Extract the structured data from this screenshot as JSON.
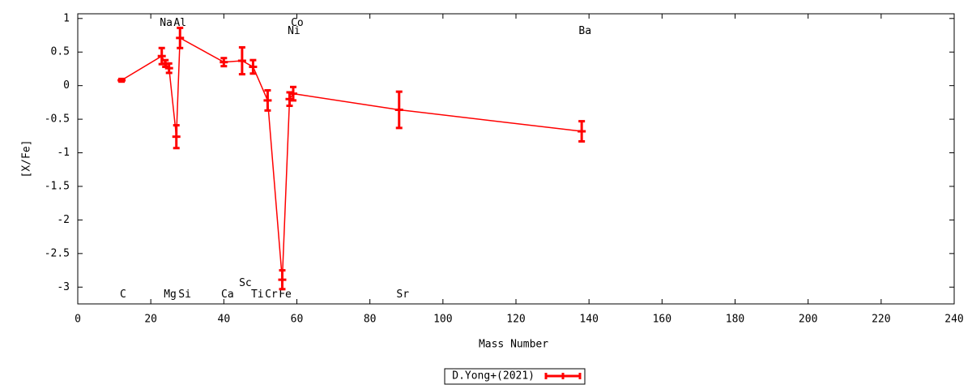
{
  "chart_data": {
    "type": "line",
    "xlabel": "Mass Number",
    "ylabel": "[X/Fe]",
    "xlim": [
      0,
      240
    ],
    "xticks": [
      0,
      20,
      40,
      60,
      80,
      100,
      120,
      140,
      160,
      180,
      200,
      220,
      240
    ],
    "ylim": [
      -3.25,
      1.07
    ],
    "yticks": [
      1,
      0.5,
      0,
      -0.5,
      -1,
      -1.5,
      -2,
      -2.5,
      -3
    ],
    "series": [
      {
        "name": "D.Yong+(2021)",
        "color": "#ff0000",
        "x": [
          12,
          23,
          24,
          25,
          27,
          28,
          40,
          45,
          48,
          52,
          56,
          58,
          59,
          88,
          138
        ],
        "values": [
          0.08,
          0.44,
          0.33,
          0.26,
          -0.76,
          0.71,
          0.35,
          0.37,
          0.28,
          -0.22,
          -2.89,
          -0.2,
          -0.12,
          -0.36,
          -0.68
        ],
        "errors": [
          0.02,
          0.12,
          0.05,
          0.07,
          0.17,
          0.15,
          0.06,
          0.2,
          0.1,
          0.15,
          0.14,
          0.1,
          0.1,
          0.27,
          0.15
        ]
      }
    ],
    "legend": "bottom-center",
    "annotations": [
      {
        "text": "C",
        "x": 12.4,
        "y": -3.11
      },
      {
        "text": "Na",
        "x": 24.2,
        "y": 0.93
      },
      {
        "text": "Al",
        "x": 28,
        "y": 0.93
      },
      {
        "text": "Mg",
        "x": 25.3,
        "y": -3.11
      },
      {
        "text": "Si",
        "x": 29.3,
        "y": -3.11
      },
      {
        "text": "Ca",
        "x": 41,
        "y": -3.11
      },
      {
        "text": "Sc",
        "x": 45.9,
        "y": -2.94
      },
      {
        "text": "Ti",
        "x": 49.2,
        "y": -3.11
      },
      {
        "text": "Cr",
        "x": 53,
        "y": -3.11
      },
      {
        "text": "Fe",
        "x": 56.8,
        "y": -3.11
      },
      {
        "text": "Co",
        "x": 60.1,
        "y": 0.93
      },
      {
        "text": "Ni",
        "x": 59.2,
        "y": 0.81
      },
      {
        "text": "Sr",
        "x": 89,
        "y": -3.11
      },
      {
        "text": "Ba",
        "x": 138.9,
        "y": 0.81
      }
    ]
  }
}
